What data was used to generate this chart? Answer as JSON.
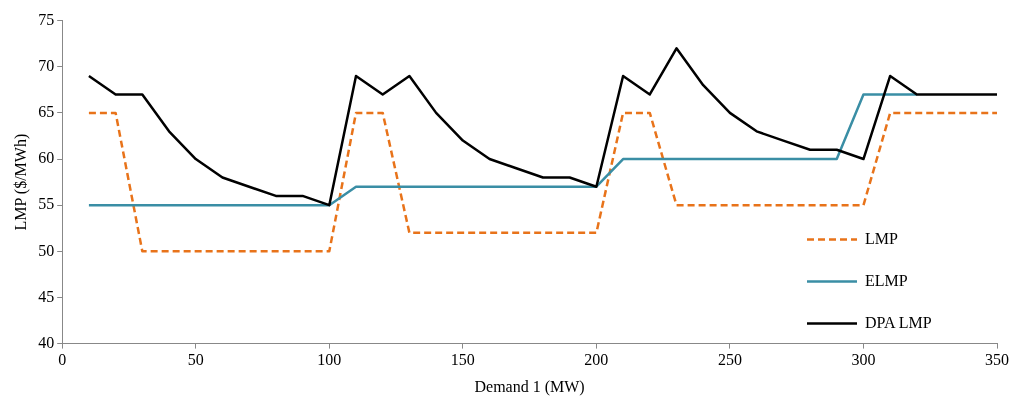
{
  "chart_data": {
    "type": "line",
    "xlabel": "Demand 1 (MW)",
    "ylabel": "LMP ($/MWh)",
    "x": [
      10,
      20,
      30,
      40,
      50,
      60,
      70,
      80,
      90,
      100,
      110,
      120,
      130,
      140,
      150,
      160,
      170,
      180,
      190,
      200,
      210,
      220,
      230,
      240,
      250,
      260,
      270,
      280,
      290,
      300,
      310,
      320,
      330,
      340,
      350
    ],
    "series": [
      {
        "name": "LMP",
        "color": "#e8731a",
        "line_style": "dashed",
        "values": [
          65,
          65,
          50,
          50,
          50,
          50,
          50,
          50,
          50,
          50,
          65,
          65,
          52,
          52,
          52,
          52,
          52,
          52,
          52,
          52,
          65,
          65,
          55,
          55,
          55,
          55,
          55,
          55,
          55,
          55,
          65,
          65,
          65,
          65,
          65
        ]
      },
      {
        "name": "ELMP",
        "color": "#3a8ea5",
        "line_style": "solid",
        "values": [
          55,
          55,
          55,
          55,
          55,
          55,
          55,
          55,
          55,
          55,
          57,
          57,
          57,
          57,
          57,
          57,
          57,
          57,
          57,
          57,
          60,
          60,
          60,
          60,
          60,
          60,
          60,
          60,
          60,
          67,
          67,
          67,
          null,
          null,
          null
        ]
      },
      {
        "name": "DPA LMP",
        "color": "#000000",
        "line_style": "solid",
        "values": [
          69,
          67,
          67,
          63,
          60,
          58,
          57,
          56,
          56,
          55,
          69,
          67,
          69,
          65,
          62,
          60,
          59,
          58,
          58,
          57,
          69,
          67,
          72,
          68,
          65,
          63,
          62,
          61,
          61,
          60,
          69,
          67,
          67,
          67,
          67
        ]
      }
    ],
    "xlim": [
      0,
      350
    ],
    "xticks": [
      0,
      50,
      100,
      150,
      200,
      250,
      300,
      350
    ],
    "ylim": [
      40,
      75
    ],
    "yticks": [
      40,
      45,
      50,
      55,
      60,
      65,
      70,
      75
    ],
    "grid": false,
    "legend": "bottom right",
    "marker": "none"
  }
}
